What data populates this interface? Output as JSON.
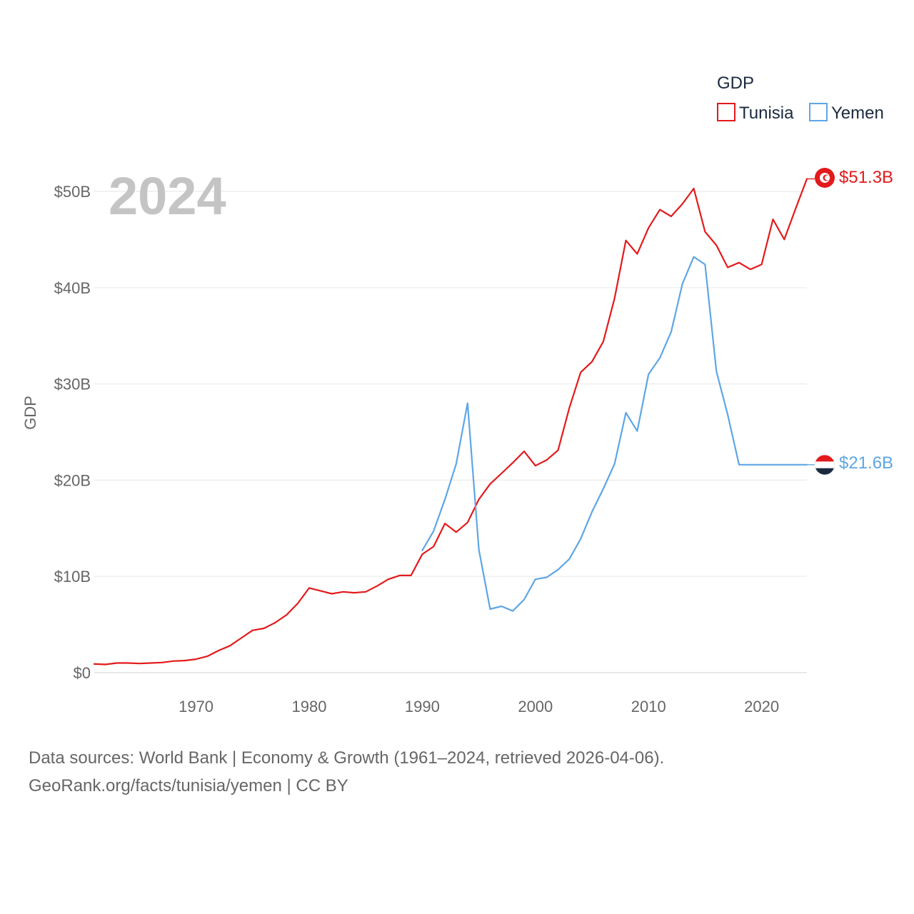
{
  "chart_data": {
    "type": "line",
    "title": "2024",
    "ylabel": "GDP",
    "xlabel": "",
    "xlim": [
      1961,
      2024
    ],
    "ylim": [
      0,
      50
    ],
    "y_ticks": [
      0,
      10,
      20,
      30,
      40,
      50
    ],
    "y_tick_labels": [
      "$0",
      "$10B",
      "$20B",
      "$30B",
      "$40B",
      "$50B"
    ],
    "x_ticks": [
      1970,
      1980,
      1990,
      2000,
      2010,
      2020
    ],
    "x_tick_labels": [
      "1970",
      "1980",
      "1990",
      "2000",
      "2010",
      "2020"
    ],
    "grid": true,
    "legend": {
      "title": "GDP",
      "position": "top-right",
      "items": [
        "Tunisia",
        "Yemen"
      ]
    },
    "series": [
      {
        "name": "Tunisia",
        "color": "#e31a1c",
        "end_label": "$51.3B",
        "flag_icon": "tunisia-flag-icon",
        "x": [
          1961,
          1962,
          1963,
          1964,
          1965,
          1966,
          1967,
          1968,
          1969,
          1970,
          1971,
          1972,
          1973,
          1974,
          1975,
          1976,
          1977,
          1978,
          1979,
          1980,
          1981,
          1982,
          1983,
          1984,
          1985,
          1986,
          1987,
          1988,
          1989,
          1990,
          1991,
          1992,
          1993,
          1994,
          1995,
          1996,
          1997,
          1998,
          1999,
          2000,
          2001,
          2002,
          2003,
          2004,
          2005,
          2006,
          2007,
          2008,
          2009,
          2010,
          2011,
          2012,
          2013,
          2014,
          2015,
          2016,
          2017,
          2018,
          2019,
          2020,
          2021,
          2022,
          2023,
          2024
        ],
        "values": [
          0.9,
          0.85,
          1.0,
          1.0,
          0.95,
          1.0,
          1.05,
          1.2,
          1.25,
          1.4,
          1.7,
          2.3,
          2.8,
          3.6,
          4.4,
          4.6,
          5.2,
          6.0,
          7.2,
          8.8,
          8.5,
          8.2,
          8.4,
          8.3,
          8.4,
          9.0,
          9.7,
          10.1,
          10.1,
          12.3,
          13.1,
          15.5,
          14.6,
          15.6,
          18.0,
          19.6,
          20.7,
          21.8,
          23.0,
          21.5,
          22.1,
          23.1,
          27.5,
          31.2,
          32.3,
          34.4,
          38.9,
          44.9,
          43.5,
          46.2,
          48.1,
          47.4,
          48.7,
          50.3,
          45.8,
          44.4,
          42.1,
          42.6,
          41.9,
          42.4,
          47.1,
          45.0,
          48.2,
          51.3
        ]
      },
      {
        "name": "Yemen",
        "color": "#5ea6e5",
        "end_label": "$21.6B",
        "flag_icon": "yemen-flag-icon",
        "x": [
          1990,
          1991,
          1992,
          1993,
          1994,
          1995,
          1996,
          1997,
          1998,
          1999,
          2000,
          2001,
          2002,
          2003,
          2004,
          2005,
          2006,
          2007,
          2008,
          2009,
          2010,
          2011,
          2012,
          2013,
          2014,
          2015,
          2016,
          2017,
          2018,
          2019,
          2020,
          2021,
          2022,
          2023,
          2024
        ],
        "values": [
          12.7,
          14.7,
          18.0,
          21.7,
          28.0,
          12.8,
          6.6,
          6.9,
          6.4,
          7.6,
          9.7,
          9.9,
          10.7,
          11.8,
          13.9,
          16.7,
          19.1,
          21.7,
          27.0,
          25.1,
          31.0,
          32.7,
          35.4,
          40.4,
          43.2,
          42.4,
          31.3,
          26.8,
          21.6,
          21.6,
          21.6,
          21.6,
          21.6,
          21.6,
          21.6
        ]
      }
    ]
  },
  "footer": {
    "line1": "Data sources: World Bank | Economy & Growth (1961–2024, retrieved 2026-04-06).",
    "line2": "GeoRank.org/facts/tunisia/yemen | CC BY"
  }
}
